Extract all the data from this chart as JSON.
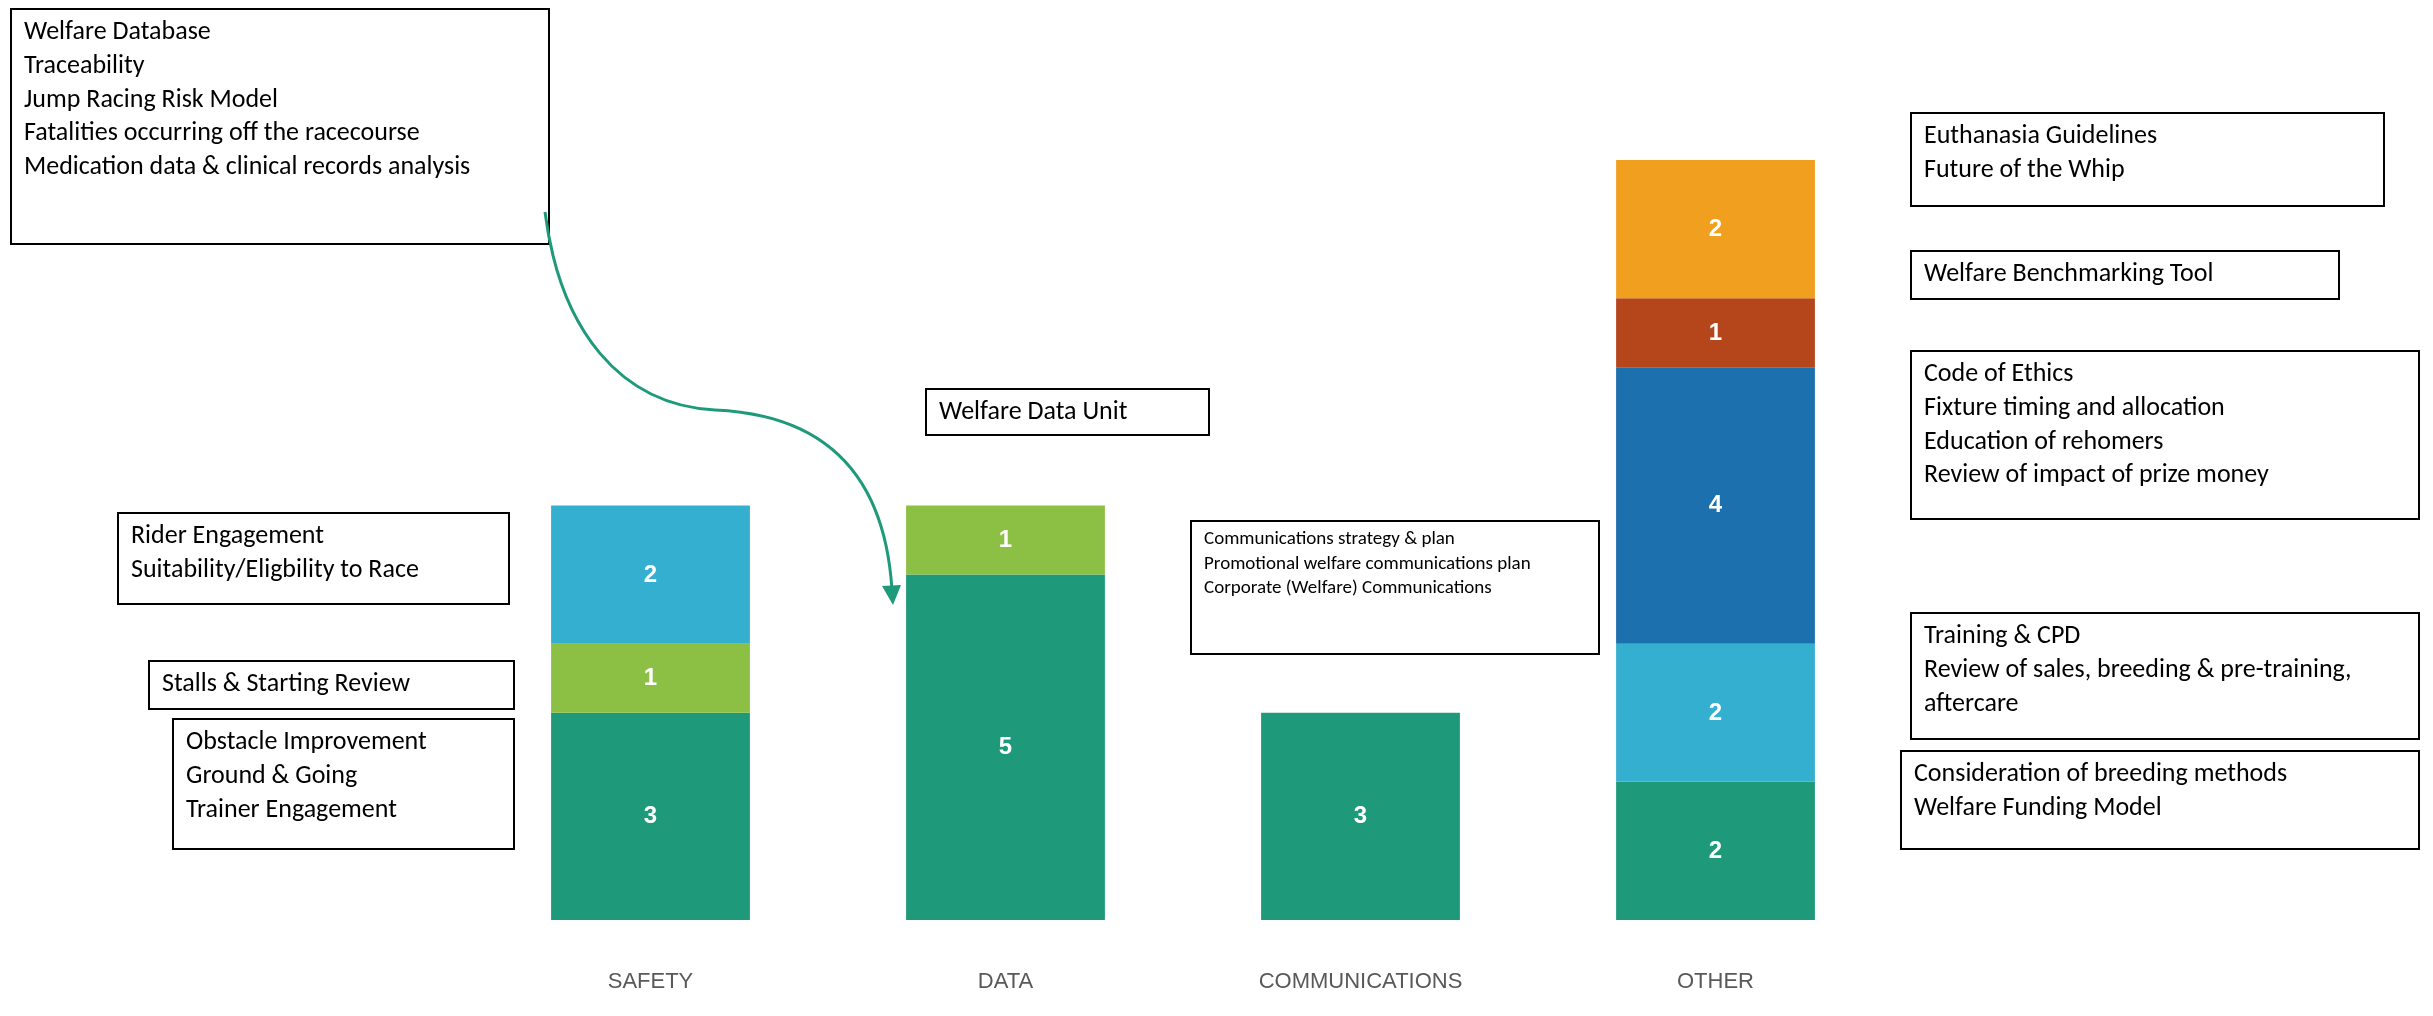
{
  "chart_data": {
    "type": "bar",
    "stacked": true,
    "data_labels": true,
    "categories": [
      "SAFETY",
      "DATA",
      "COMMUNICATIONS",
      "OTHER"
    ],
    "series": [
      {
        "color": "#1e9a7b",
        "values": [
          3,
          5,
          3,
          2
        ]
      },
      {
        "color": "#8cc045",
        "values": [
          1,
          1,
          null,
          null
        ]
      },
      {
        "color": "#35afd0",
        "values": [
          2,
          null,
          null,
          2
        ]
      },
      {
        "color": "#1c70ad",
        "values": [
          null,
          null,
          null,
          4
        ]
      },
      {
        "color": "#b5461c",
        "values": [
          null,
          null,
          null,
          1
        ]
      },
      {
        "color": "#f19f1e",
        "values": [
          null,
          null,
          null,
          2
        ]
      }
    ],
    "annotations": [
      "Welfare Database\nTraceability\nJump Racing Risk Model\nFatalities occurring off the racecourse\nMedication data & clinical records analysis",
      "Rider Engagement\nSuitability/Eligbility to Race",
      "Stalls & Starting Review",
      "Obstacle Improvement\nGround & Going\nTrainer Engagement",
      "Welfare Data Unit",
      "Communications strategy & plan\nPromotional welfare communications plan\nCorporate (Welfare) Communications",
      "Euthanasia Guidelines\nFuture of the Whip",
      "Welfare Benchmarking Tool",
      "Code of Ethics\nFixture timing and allocation\nEducation of rehomers\nReview of impact of prize money",
      "Training & CPD\nReview of sales, breeding & pre-training, aftercare",
      "Consideration of breeding methods\nWelfare Funding Model"
    ]
  }
}
